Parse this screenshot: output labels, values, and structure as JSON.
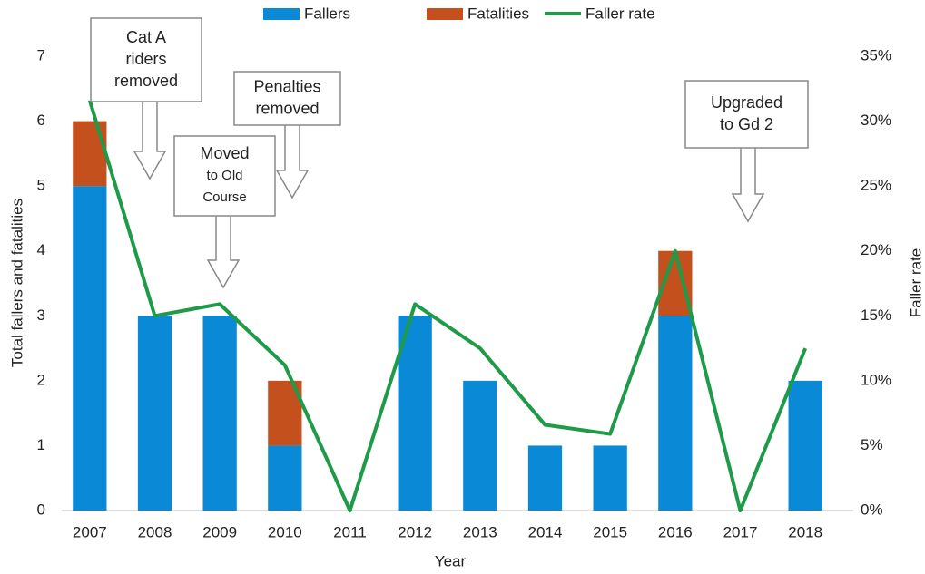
{
  "chart_data": {
    "type": "bar",
    "legend": "top",
    "xlabel": "Year",
    "ylabel": "Total fallers and fatalities",
    "y2label": "Faller rate",
    "categories": [
      "2007",
      "2008",
      "2009",
      "2010",
      "2011",
      "2012",
      "2013",
      "2014",
      "2015",
      "2016",
      "2017",
      "2018"
    ],
    "series": [
      {
        "name": "Fallers",
        "color": "#0a8ad6",
        "type": "bar",
        "values": [
          5,
          3,
          3,
          1,
          0,
          3,
          2,
          1,
          1,
          3,
          0,
          2
        ]
      },
      {
        "name": "Fatalities",
        "color": "#c4501e",
        "type": "bar",
        "values": [
          1,
          0,
          0,
          1,
          0,
          0,
          0,
          0,
          0,
          1,
          0,
          0
        ]
      },
      {
        "name": "Faller rate",
        "color": "#1e9a48",
        "type": "line",
        "axis": "y2",
        "values": [
          31.6,
          15.0,
          15.9,
          11.2,
          0,
          15.9,
          12.5,
          6.6,
          5.9,
          20.0,
          0,
          12.5
        ]
      }
    ],
    "ylim": [
      0,
      7
    ],
    "yticks": [
      0,
      1,
      2,
      3,
      4,
      5,
      6,
      7
    ],
    "y2lim": [
      0,
      35
    ],
    "y2ticks": [
      {
        "value": 0,
        "label": "0%"
      },
      {
        "value": 5,
        "label": "5%"
      },
      {
        "value": 10,
        "label": "10%"
      },
      {
        "value": 15,
        "label": "15%"
      },
      {
        "value": 20,
        "label": "20%"
      },
      {
        "value": 25,
        "label": "25%"
      },
      {
        "value": 30,
        "label": "30%"
      },
      {
        "value": 35,
        "label": "35%"
      }
    ],
    "annotations": [
      {
        "lines": [
          "Cat A",
          "riders",
          "removed"
        ]
      },
      {
        "lines": [
          "Penalties",
          "removed"
        ]
      },
      {
        "lines": [
          "Moved",
          "to Old",
          "Course"
        ]
      },
      {
        "lines": [
          "Upgraded",
          "to Gd 2"
        ]
      }
    ]
  }
}
